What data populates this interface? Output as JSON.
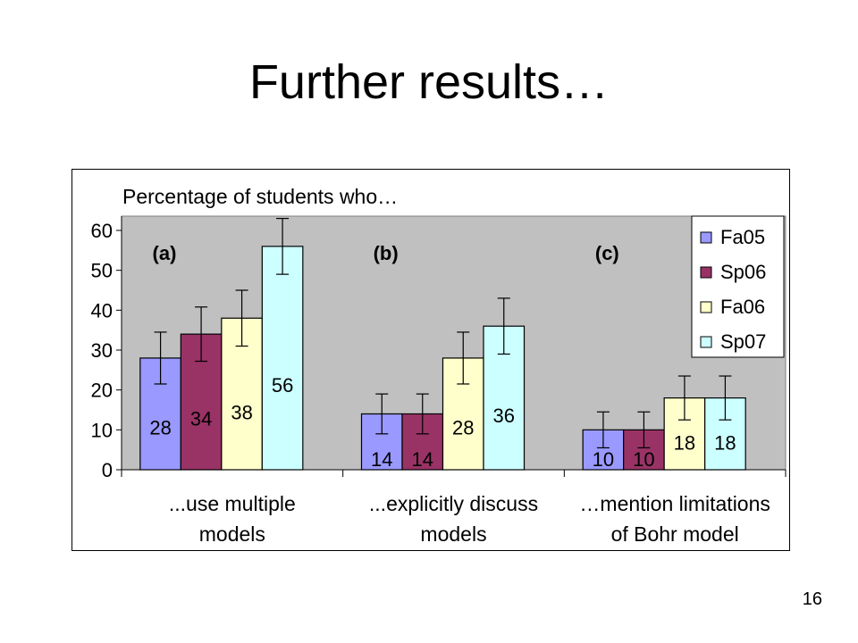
{
  "slide": {
    "title": "Further results…",
    "page_number": "16"
  },
  "chart_data": {
    "type": "bar",
    "title": "Percentage of students who…",
    "categories": [
      "...use multiple models",
      "...explicitly discuss models",
      "…mention limitations of Bohr model"
    ],
    "category_labels": [
      [
        "...use multiple",
        "models"
      ],
      [
        "...explicitly discuss",
        "models"
      ],
      [
        "…mention limitations",
        "of Bohr model"
      ]
    ],
    "panel_labels": [
      "(a)",
      "(b)",
      "(c)"
    ],
    "series": [
      {
        "name": "Fa05",
        "color": "#9999ff",
        "values": [
          28,
          14,
          10
        ],
        "errors": [
          6.5,
          5,
          4.5
        ]
      },
      {
        "name": "Sp06",
        "color": "#993366",
        "values": [
          34,
          14,
          10
        ],
        "errors": [
          6.8,
          5,
          4.5
        ]
      },
      {
        "name": "Fa06",
        "color": "#ffffcc",
        "values": [
          38,
          28,
          18
        ],
        "errors": [
          7,
          6.5,
          5.5
        ]
      },
      {
        "name": "Sp07",
        "color": "#ccffff",
        "values": [
          56,
          36,
          18
        ],
        "errors": [
          7,
          7,
          5.5
        ]
      }
    ],
    "ylim": [
      0,
      60
    ],
    "yticks": [
      0,
      10,
      20,
      30,
      40,
      50,
      60
    ],
    "xlabel": "",
    "ylabel": "",
    "plot_background": "#c0c0c0",
    "grid": false,
    "legend": "top-right"
  }
}
